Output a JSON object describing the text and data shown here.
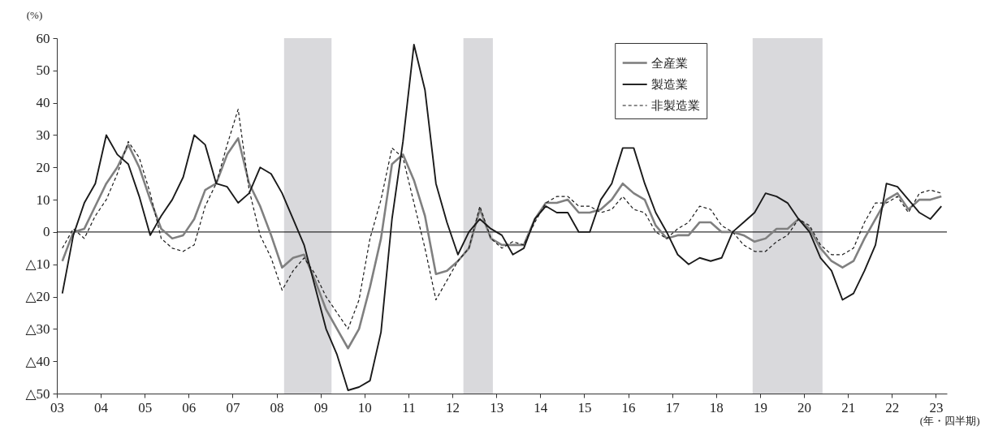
{
  "chart_data": {
    "type": "line",
    "xlabel": "(年・四半期)",
    "ylabel": "(%)",
    "x": [
      2003.125,
      2003.375,
      2003.625,
      2003.875,
      2004.125,
      2004.375,
      2004.625,
      2004.875,
      2005.125,
      2005.375,
      2005.625,
      2005.875,
      2006.125,
      2006.375,
      2006.625,
      2006.875,
      2007.125,
      2007.375,
      2007.625,
      2007.875,
      2008.125,
      2008.375,
      2008.625,
      2008.875,
      2009.125,
      2009.375,
      2009.625,
      2009.875,
      2010.125,
      2010.375,
      2010.625,
      2010.875,
      2011.125,
      2011.375,
      2011.625,
      2011.875,
      2012.125,
      2012.375,
      2012.625,
      2012.875,
      2013.125,
      2013.375,
      2013.625,
      2013.875,
      2014.125,
      2014.375,
      2014.625,
      2014.875,
      2015.125,
      2015.375,
      2015.625,
      2015.875,
      2016.125,
      2016.375,
      2016.625,
      2016.875,
      2017.125,
      2017.375,
      2017.625,
      2017.875,
      2018.125,
      2018.375,
      2018.625,
      2018.875,
      2019.125,
      2019.375,
      2019.625,
      2019.875,
      2020.125,
      2020.375,
      2020.625,
      2020.875,
      2021.125,
      2021.375,
      2021.625,
      2021.875,
      2022.125,
      2022.375,
      2022.625,
      2022.875,
      2023.125
    ],
    "series": [
      {
        "name": "全産業",
        "color": "#808080",
        "line_style": "solid",
        "values": [
          -9,
          0,
          1,
          8,
          15,
          20,
          27,
          20,
          10,
          1,
          -2,
          -1,
          4,
          13,
          15,
          24,
          29,
          15,
          8,
          -1,
          -11,
          -8,
          -7,
          -15,
          -24,
          -30,
          -36,
          -30,
          -17,
          -2,
          21,
          24,
          16,
          5,
          -13,
          -12,
          -9,
          -5,
          7,
          -2,
          -4,
          -4,
          -4,
          4,
          9,
          9,
          10,
          6,
          6,
          7,
          10,
          15,
          12,
          10,
          2,
          -2,
          -1,
          -1,
          3,
          3,
          0,
          0,
          -1,
          -3,
          -2,
          1,
          1,
          4,
          1,
          -5,
          -9,
          -11,
          -9,
          -2,
          4,
          10,
          12,
          7,
          10,
          10,
          11
        ]
      },
      {
        "name": "製造業",
        "color": "#1a1a1a",
        "line_style": "solid",
        "values": [
          -19,
          -1,
          9,
          15,
          30,
          24,
          21,
          11,
          -1,
          5,
          10,
          17,
          30,
          27,
          15,
          14,
          9,
          12,
          20,
          18,
          12,
          4,
          -4,
          -17,
          -30,
          -38,
          -49,
          -48,
          -46,
          -31,
          4,
          28,
          58,
          44,
          15,
          3,
          -7,
          0,
          4,
          1,
          -1,
          -7,
          -5,
          4,
          8,
          6,
          6,
          0,
          0,
          10,
          15,
          26,
          26,
          15,
          6,
          0,
          -7,
          -10,
          -8,
          -9,
          -8,
          0,
          3,
          6,
          12,
          11,
          9,
          4,
          0,
          -8,
          -12,
          -21,
          -19,
          -12,
          -4,
          15,
          14,
          10,
          6,
          4,
          8
        ]
      },
      {
        "name": "非製造業",
        "color": "#1a1a1a",
        "line_style": "dashed",
        "values": [
          -5,
          1,
          -2,
          5,
          10,
          18,
          28,
          23,
          12,
          -2,
          -5,
          -6,
          -4,
          8,
          15,
          27,
          38,
          13,
          -1,
          -8,
          -18,
          -12,
          -8,
          -13,
          -20,
          -25,
          -30,
          -21,
          -2,
          10,
          26,
          23,
          9,
          -5,
          -21,
          -15,
          -9,
          -5,
          8,
          -2,
          -5,
          -3,
          -4,
          3,
          9,
          11,
          11,
          8,
          8,
          6,
          7,
          11,
          7,
          6,
          0,
          -2,
          1,
          3,
          8,
          7,
          2,
          0,
          -4,
          -6,
          -6,
          -3,
          -1,
          4,
          2,
          -4,
          -7,
          -7,
          -5,
          3,
          9,
          9,
          11,
          6,
          12,
          13,
          12
        ]
      }
    ],
    "xlim": [
      2003,
      2023.25
    ],
    "xticks": [
      {
        "value": 2003,
        "label": "03"
      },
      {
        "value": 2004,
        "label": "04"
      },
      {
        "value": 2005,
        "label": "05"
      },
      {
        "value": 2006,
        "label": "06"
      },
      {
        "value": 2007,
        "label": "07"
      },
      {
        "value": 2008,
        "label": "08"
      },
      {
        "value": 2009,
        "label": "09"
      },
      {
        "value": 2010,
        "label": "10"
      },
      {
        "value": 2011,
        "label": "11"
      },
      {
        "value": 2012,
        "label": "12"
      },
      {
        "value": 2013,
        "label": "13"
      },
      {
        "value": 2014,
        "label": "14"
      },
      {
        "value": 2015,
        "label": "15"
      },
      {
        "value": 2016,
        "label": "16"
      },
      {
        "value": 2017,
        "label": "17"
      },
      {
        "value": 2018,
        "label": "18"
      },
      {
        "value": 2019,
        "label": "19"
      },
      {
        "value": 2020,
        "label": "20"
      },
      {
        "value": 2021,
        "label": "21"
      },
      {
        "value": 2022,
        "label": "22"
      },
      {
        "value": 2023,
        "label": "23"
      }
    ],
    "ylim": [
      -50,
      60
    ],
    "yticks": [
      {
        "value": -50,
        "label": "△50"
      },
      {
        "value": -40,
        "label": "△40"
      },
      {
        "value": -30,
        "label": "△30"
      },
      {
        "value": -20,
        "label": "△20"
      },
      {
        "value": -10,
        "label": "△10"
      },
      0,
      10,
      20,
      30,
      40,
      50,
      60
    ],
    "ref_lines": [
      {
        "axis": "y",
        "value": 0,
        "color": "#000000"
      }
    ],
    "bands": [
      {
        "axis": "x",
        "from": 2008.17,
        "to": 2009.25,
        "color": "#d9d9dc"
      },
      {
        "axis": "x",
        "from": 2012.25,
        "to": 2012.92,
        "color": "#d9d9dc"
      },
      {
        "axis": "x",
        "from": 2018.83,
        "to": 2020.42,
        "color": "#d9d9dc"
      }
    ],
    "grid": false,
    "legend": "top right",
    "marker": "none"
  }
}
